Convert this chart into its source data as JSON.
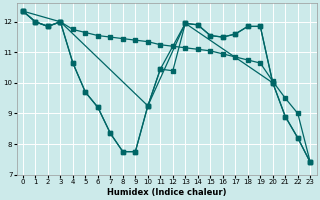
{
  "xlabel": "Humidex (Indice chaleur)",
  "bg_color": "#cceaea",
  "line_color": "#006666",
  "grid_color": "#ffffff",
  "xlim": [
    -0.5,
    23.5
  ],
  "ylim": [
    7,
    12.6
  ],
  "yticks": [
    7,
    8,
    9,
    10,
    11,
    12
  ],
  "xticks": [
    0,
    1,
    2,
    3,
    4,
    5,
    6,
    7,
    8,
    9,
    10,
    11,
    12,
    13,
    14,
    15,
    16,
    17,
    18,
    19,
    20,
    21,
    22,
    23
  ],
  "line1_x": [
    0,
    1,
    2,
    3,
    4,
    5,
    6,
    7,
    8,
    9,
    10,
    11,
    12,
    13,
    14,
    15,
    16,
    17,
    18,
    19,
    20,
    21,
    22,
    23
  ],
  "line1_y": [
    12.35,
    12.0,
    11.85,
    12.0,
    10.65,
    9.7,
    9.2,
    8.35,
    7.75,
    7.75,
    9.25,
    10.45,
    10.4,
    11.95,
    11.9,
    11.55,
    11.5,
    11.6,
    11.85,
    11.85,
    10.0,
    8.9,
    8.2,
    7.4
  ],
  "line2_x": [
    0,
    1,
    2,
    3,
    4,
    5,
    6,
    7,
    8,
    9,
    10,
    11,
    12,
    13,
    14,
    15,
    16,
    17,
    18,
    19,
    20,
    21,
    22,
    23
  ],
  "line2_y": [
    12.35,
    12.0,
    11.85,
    12.0,
    11.75,
    11.65,
    11.55,
    11.5,
    11.45,
    11.4,
    11.35,
    11.25,
    11.2,
    11.15,
    11.1,
    11.05,
    10.95,
    10.85,
    10.75,
    10.65,
    10.05,
    9.5,
    9.0,
    7.4
  ],
  "line3_x": [
    0,
    3,
    10,
    11,
    13,
    14,
    15,
    16,
    17,
    18,
    19,
    20
  ],
  "line3_y": [
    12.35,
    12.0,
    9.25,
    10.45,
    11.95,
    11.9,
    11.55,
    11.5,
    11.6,
    11.85,
    11.85,
    10.0
  ],
  "line4_x": [
    0,
    1,
    2,
    3,
    4,
    5,
    6,
    7,
    8,
    9,
    10,
    13,
    20,
    21,
    22,
    23
  ],
  "line4_y": [
    12.35,
    12.0,
    11.85,
    12.0,
    10.65,
    9.7,
    9.2,
    8.35,
    7.75,
    7.75,
    9.25,
    11.95,
    10.0,
    8.9,
    8.2,
    7.4
  ]
}
